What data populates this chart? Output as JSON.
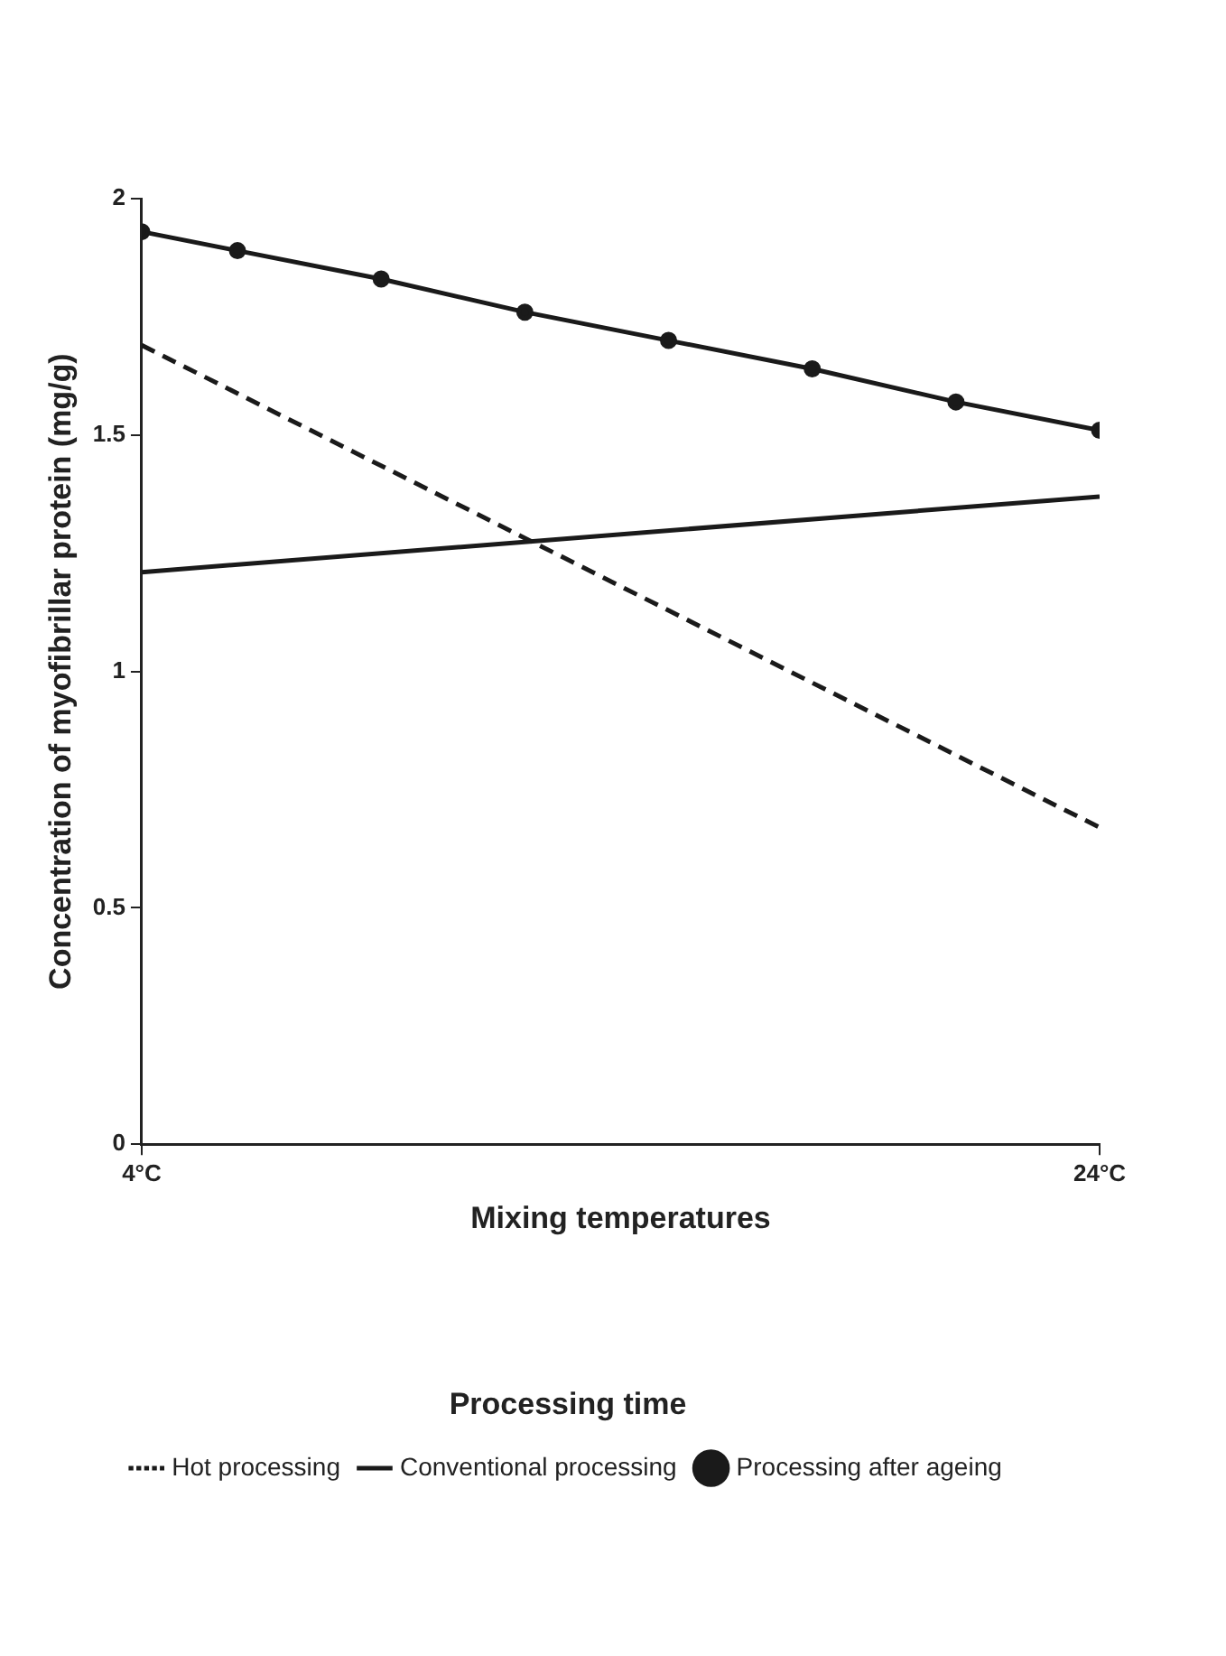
{
  "chart_data": {
    "type": "line",
    "xlabel": "Mixing temperatures",
    "ylabel": "Concentration of myofibrillar protein (mg/g)",
    "legend_title": "Processing time",
    "legend": "bottom",
    "grid": false,
    "xlim": [
      4,
      24
    ],
    "xticks": [
      {
        "value": 4,
        "label": "4°C"
      },
      {
        "value": 24,
        "label": "24°C"
      }
    ],
    "ylim": [
      0,
      2
    ],
    "yticks": [
      0,
      0.5,
      1,
      1.5,
      2
    ],
    "series": [
      {
        "name": "Hot processing",
        "color": "#1a1a1a",
        "line_style": "dashed",
        "marker": "none",
        "x": [
          4,
          24
        ],
        "values": [
          1.69,
          0.67
        ]
      },
      {
        "name": "Conventional processing",
        "color": "#1a1a1a",
        "line_style": "solid",
        "marker": "none",
        "x": [
          4,
          24
        ],
        "values": [
          1.21,
          1.37
        ]
      },
      {
        "name": "Processing after ageing",
        "color": "#1a1a1a",
        "line_style": "solid",
        "marker": "circle",
        "x": [
          4,
          6,
          9,
          12,
          15,
          18,
          21,
          24
        ],
        "values": [
          1.93,
          1.89,
          1.83,
          1.76,
          1.7,
          1.64,
          1.57,
          1.51
        ]
      }
    ]
  }
}
